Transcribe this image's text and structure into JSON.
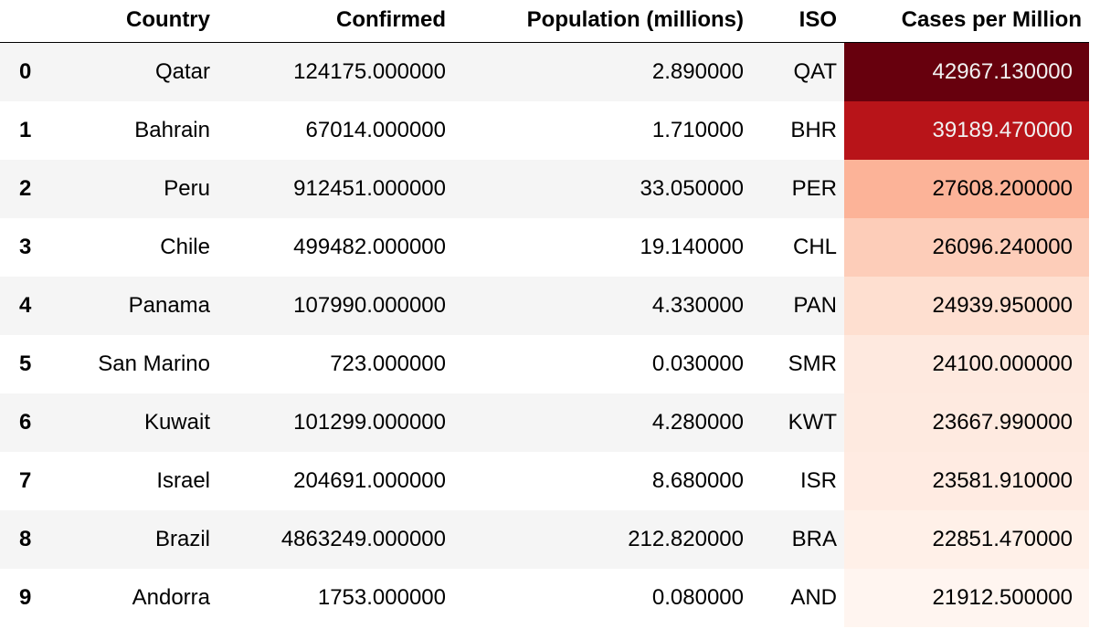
{
  "table": {
    "columns": {
      "index": "",
      "country": "Country",
      "confirmed": "Confirmed",
      "population": "Population (millions)",
      "iso": "ISO",
      "cases_per_million": "Cases per Million"
    },
    "rows": [
      {
        "index": "0",
        "country": "Qatar",
        "confirmed": "124175.000000",
        "population": "2.890000",
        "iso": "QAT",
        "cases_per_million": "42967.130000",
        "cell_bg": "#67000d",
        "cell_fg": "#f1f1f1"
      },
      {
        "index": "1",
        "country": "Bahrain",
        "confirmed": "67014.000000",
        "population": "1.710000",
        "iso": "BHR",
        "cases_per_million": "39189.470000",
        "cell_bg": "#b81419",
        "cell_fg": "#f1f1f1"
      },
      {
        "index": "2",
        "country": "Peru",
        "confirmed": "912451.000000",
        "population": "33.050000",
        "iso": "PER",
        "cases_per_million": "27608.200000",
        "cell_bg": "#fcb398",
        "cell_fg": "#000000"
      },
      {
        "index": "3",
        "country": "Chile",
        "confirmed": "499482.000000",
        "population": "19.140000",
        "iso": "CHL",
        "cases_per_million": "26096.240000",
        "cell_bg": "#fdcdb9",
        "cell_fg": "#000000"
      },
      {
        "index": "4",
        "country": "Panama",
        "confirmed": "107990.000000",
        "population": "4.330000",
        "iso": "PAN",
        "cases_per_million": "24939.950000",
        "cell_bg": "#fedfd0",
        "cell_fg": "#000000"
      },
      {
        "index": "5",
        "country": "San Marino",
        "confirmed": "723.000000",
        "population": "0.030000",
        "iso": "SMR",
        "cases_per_million": "24100.000000",
        "cell_bg": "#fee9df",
        "cell_fg": "#000000"
      },
      {
        "index": "6",
        "country": "Kuwait",
        "confirmed": "101299.000000",
        "population": "4.280000",
        "iso": "KWT",
        "cases_per_million": "23667.990000",
        "cell_bg": "#feeae0",
        "cell_fg": "#000000"
      },
      {
        "index": "7",
        "country": "Israel",
        "confirmed": "204691.000000",
        "population": "8.680000",
        "iso": "ISR",
        "cases_per_million": "23581.910000",
        "cell_bg": "#ffebe2",
        "cell_fg": "#000000"
      },
      {
        "index": "8",
        "country": "Brazil",
        "confirmed": "4863249.000000",
        "population": "212.820000",
        "iso": "BRA",
        "cases_per_million": "22851.470000",
        "cell_bg": "#fff0e8",
        "cell_fg": "#000000"
      },
      {
        "index": "9",
        "country": "Andorra",
        "confirmed": "1753.000000",
        "population": "0.080000",
        "iso": "AND",
        "cases_per_million": "21912.500000",
        "cell_bg": "#fff5f0",
        "cell_fg": "#000000"
      }
    ]
  }
}
